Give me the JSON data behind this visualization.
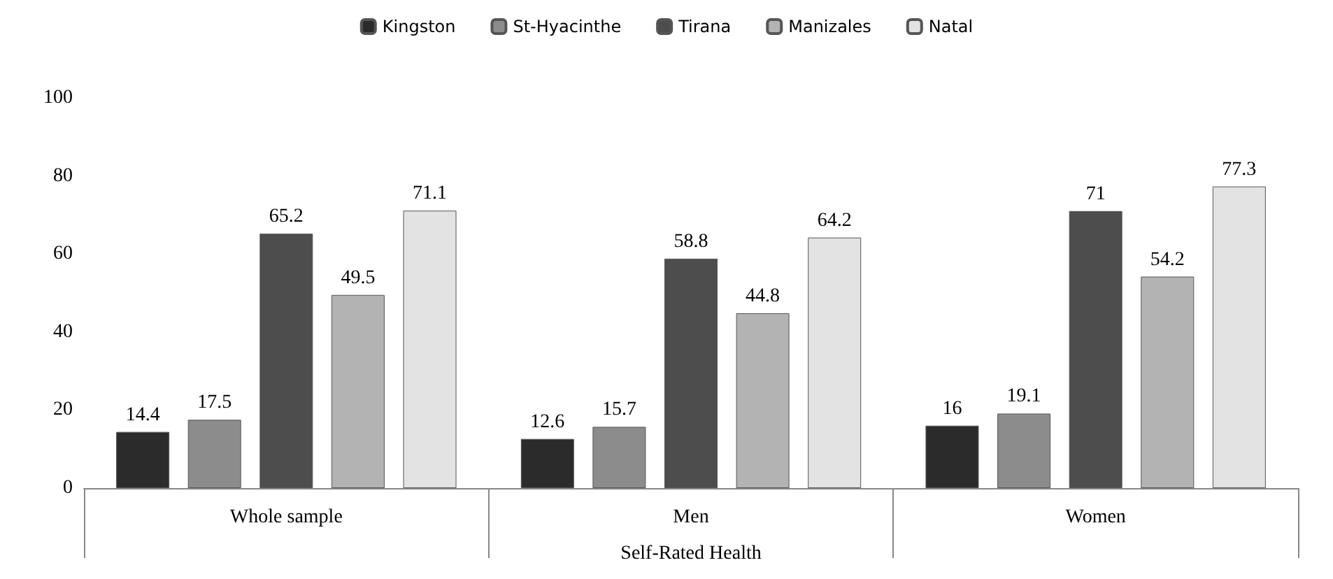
{
  "chart_data": {
    "type": "bar",
    "xlabel": "Self-Rated Health",
    "categories": [
      "Whole sample",
      "Men",
      "Women"
    ],
    "series": [
      {
        "name": "Kingston",
        "color": "#2b2b2b",
        "values": [
          14.4,
          12.6,
          16
        ]
      },
      {
        "name": "St-Hyacinthe",
        "color": "#8c8c8c",
        "values": [
          17.5,
          15.7,
          19.1
        ]
      },
      {
        "name": "Tirana",
        "color": "#4d4d4d",
        "values": [
          65.2,
          58.8,
          71
        ]
      },
      {
        "name": "Manizales",
        "color": "#b3b3b3",
        "values": [
          49.5,
          44.8,
          54.2
        ]
      },
      {
        "name": "Natal",
        "color": "#e3e3e3",
        "values": [
          71.1,
          64.2,
          77.3
        ]
      }
    ],
    "ylim": [
      0,
      100
    ],
    "yticks": [
      0,
      20,
      40,
      60,
      80,
      100
    ],
    "grid": false,
    "legend": "top",
    "data_labels": true
  }
}
